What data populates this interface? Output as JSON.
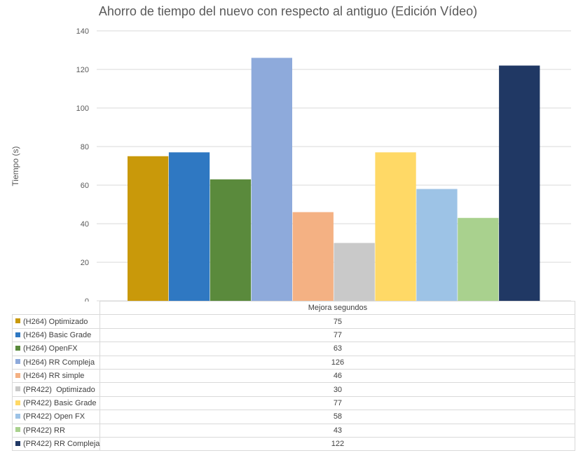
{
  "chart_data": {
    "type": "bar",
    "title": "Ahorro de tiempo del nuevo con respecto al antiguo (Edición Vídeo)",
    "ylabel": "Tiempo (s)",
    "xlabel": "",
    "category": "Mejora segundos",
    "ylim": [
      0,
      140
    ],
    "yticks": [
      0,
      20,
      40,
      60,
      80,
      100,
      120,
      140
    ],
    "grid": true,
    "legend": "data-table",
    "series": [
      {
        "name": "(H264) Optimizado",
        "value": 75,
        "color": "#C9990A"
      },
      {
        "name": "(H264) Basic Grade",
        "value": 77,
        "color": "#2F78C2"
      },
      {
        "name": "(H264) OpenFX",
        "value": 63,
        "color": "#5A8A3C"
      },
      {
        "name": "(H264) RR Compleja",
        "value": 126,
        "color": "#8EAADB"
      },
      {
        "name": "(H264) RR simple",
        "value": 46,
        "color": "#F4B183"
      },
      {
        "name": "(PR422)  Optimizado",
        "value": 30,
        "color": "#C9C9C9"
      },
      {
        "name": "(PR422) Basic Grade",
        "value": 77,
        "color": "#FFD966"
      },
      {
        "name": "(PR422) Open FX",
        "value": 58,
        "color": "#9DC3E6"
      },
      {
        "name": "(PR422) RR",
        "value": 43,
        "color": "#A9D18E"
      },
      {
        "name": "(PR422) RR Compleja",
        "value": 122,
        "color": "#203864"
      }
    ]
  }
}
